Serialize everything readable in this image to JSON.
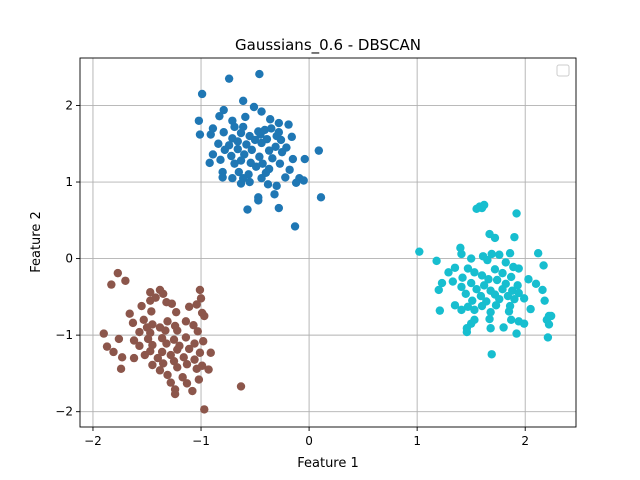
{
  "chart_data": {
    "type": "scatter",
    "title": "Gaussians_0.6 - DBSCAN",
    "xlabel": "Feature 1",
    "ylabel": "Feature 2",
    "xlim": [
      -2.12,
      2.47
    ],
    "ylim": [
      -2.2,
      2.62
    ],
    "xticks": [
      -2,
      -1,
      0,
      1,
      2
    ],
    "yticks": [
      -2,
      -1,
      0,
      1,
      2
    ],
    "xtick_labels": [
      "−2",
      "−1",
      "0",
      "1",
      "2"
    ],
    "ytick_labels": [
      "−2",
      "−1",
      "0",
      "1",
      "2"
    ],
    "grid": true,
    "legend": {
      "placement": "top-right",
      "entries": []
    },
    "series": [
      {
        "color": "#1f77b4",
        "points": [
          [
            -0.46,
            2.41
          ],
          [
            -0.74,
            2.35
          ],
          [
            -0.99,
            2.15
          ],
          [
            -0.61,
            2.06
          ],
          [
            -0.79,
            1.94
          ],
          [
            -0.51,
            1.98
          ],
          [
            -0.44,
            1.92
          ],
          [
            -0.59,
            1.85
          ],
          [
            -0.83,
            1.86
          ],
          [
            -1.02,
            1.8
          ],
          [
            -0.71,
            1.8
          ],
          [
            -0.36,
            1.82
          ],
          [
            -0.28,
            1.77
          ],
          [
            -0.19,
            1.75
          ],
          [
            -0.89,
            1.7
          ],
          [
            -0.69,
            1.72
          ],
          [
            -0.61,
            1.72
          ],
          [
            -0.47,
            1.66
          ],
          [
            -0.41,
            1.68
          ],
          [
            -0.35,
            1.7
          ],
          [
            -0.28,
            1.65
          ],
          [
            -1.01,
            1.62
          ],
          [
            -0.91,
            1.62
          ],
          [
            -0.79,
            1.65
          ],
          [
            -0.63,
            1.64
          ],
          [
            -0.55,
            1.6
          ],
          [
            -0.45,
            1.62
          ],
          [
            -0.3,
            1.6
          ],
          [
            -0.16,
            1.59
          ],
          [
            -0.71,
            1.57
          ],
          [
            -0.66,
            1.53
          ],
          [
            -0.5,
            1.55
          ],
          [
            -0.39,
            1.56
          ],
          [
            -0.26,
            1.55
          ],
          [
            -0.84,
            1.5
          ],
          [
            -0.74,
            1.48
          ],
          [
            -0.58,
            1.49
          ],
          [
            -0.44,
            1.51
          ],
          [
            -0.31,
            1.46
          ],
          [
            -0.21,
            1.45
          ],
          [
            -0.78,
            1.42
          ],
          [
            -0.66,
            1.43
          ],
          [
            -0.53,
            1.42
          ],
          [
            -0.37,
            1.41
          ],
          [
            -0.25,
            1.39
          ],
          [
            0.09,
            1.41
          ],
          [
            -0.89,
            1.36
          ],
          [
            -0.72,
            1.34
          ],
          [
            -0.6,
            1.36
          ],
          [
            -0.46,
            1.33
          ],
          [
            -0.34,
            1.31
          ],
          [
            -0.15,
            1.3
          ],
          [
            -0.82,
            1.29
          ],
          [
            -0.63,
            1.28
          ],
          [
            -0.54,
            1.25
          ],
          [
            -0.43,
            1.24
          ],
          [
            -0.27,
            1.24
          ],
          [
            -0.04,
            1.3
          ],
          [
            -0.92,
            1.25
          ],
          [
            -0.69,
            1.24
          ],
          [
            -0.49,
            1.2
          ],
          [
            -0.37,
            1.17
          ],
          [
            -0.18,
            1.16
          ],
          [
            -0.8,
            1.13
          ],
          [
            -0.65,
            1.13
          ],
          [
            -0.56,
            1.1
          ],
          [
            -0.4,
            1.12
          ],
          [
            -0.71,
            1.05
          ],
          [
            -0.61,
            1.05
          ],
          [
            -0.44,
            1.05
          ],
          [
            -0.22,
            1.06
          ],
          [
            -0.09,
            1.05
          ],
          [
            -0.8,
            1.06
          ],
          [
            -0.55,
            1.0
          ],
          [
            -0.38,
            0.97
          ],
          [
            -0.12,
            0.99
          ],
          [
            -0.05,
            1.02
          ],
          [
            -0.63,
            0.98
          ],
          [
            -0.3,
            0.95
          ],
          [
            0.11,
            0.8
          ],
          [
            -0.47,
            0.8
          ],
          [
            -0.32,
            0.84
          ],
          [
            -0.47,
            0.76
          ],
          [
            -0.28,
            0.66
          ],
          [
            -0.57,
            0.64
          ],
          [
            -0.13,
            0.42
          ]
        ]
      },
      {
        "color": "#17becf",
        "points": [
          [
            1.58,
            0.68
          ],
          [
            1.6,
            0.66
          ],
          [
            1.55,
            0.65
          ],
          [
            1.62,
            0.7
          ],
          [
            1.92,
            0.59
          ],
          [
            1.67,
            0.32
          ],
          [
            1.72,
            0.27
          ],
          [
            1.9,
            0.28
          ],
          [
            1.4,
            0.14
          ],
          [
            1.41,
            0.06
          ],
          [
            1.02,
            0.09
          ],
          [
            1.61,
            0.03
          ],
          [
            1.69,
            0.06
          ],
          [
            1.76,
            0.05
          ],
          [
            1.86,
            0.07
          ],
          [
            2.12,
            0.07
          ],
          [
            1.18,
            -0.03
          ],
          [
            1.5,
            0.0
          ],
          [
            1.65,
            -0.02
          ],
          [
            1.82,
            -0.05
          ],
          [
            1.35,
            -0.12
          ],
          [
            1.47,
            -0.13
          ],
          [
            1.72,
            -0.14
          ],
          [
            1.89,
            -0.11
          ],
          [
            1.94,
            -0.13
          ],
          [
            2.17,
            -0.09
          ],
          [
            1.29,
            -0.18
          ],
          [
            1.53,
            -0.18
          ],
          [
            1.6,
            -0.22
          ],
          [
            1.79,
            -0.19
          ],
          [
            1.87,
            -0.24
          ],
          [
            1.42,
            -0.25
          ],
          [
            1.66,
            -0.27
          ],
          [
            1.74,
            -0.28
          ],
          [
            2.03,
            -0.27
          ],
          [
            1.23,
            -0.32
          ],
          [
            1.33,
            -0.3
          ],
          [
            1.5,
            -0.32
          ],
          [
            1.62,
            -0.35
          ],
          [
            1.82,
            -0.33
          ],
          [
            1.93,
            -0.35
          ],
          [
            1.2,
            -0.41
          ],
          [
            1.41,
            -0.37
          ],
          [
            1.55,
            -0.4
          ],
          [
            1.68,
            -0.42
          ],
          [
            1.79,
            -0.4
          ],
          [
            1.88,
            -0.42
          ],
          [
            2.1,
            -0.33
          ],
          [
            2.16,
            -0.41
          ],
          [
            1.45,
            -0.46
          ],
          [
            1.59,
            -0.49
          ],
          [
            1.72,
            -0.47
          ],
          [
            1.84,
            -0.49
          ],
          [
            1.94,
            -0.45
          ],
          [
            1.51,
            -0.55
          ],
          [
            1.64,
            -0.56
          ],
          [
            1.76,
            -0.53
          ],
          [
            1.9,
            -0.53
          ],
          [
            1.99,
            -0.52
          ],
          [
            2.18,
            -0.55
          ],
          [
            1.35,
            -0.61
          ],
          [
            1.47,
            -0.63
          ],
          [
            1.6,
            -0.62
          ],
          [
            1.73,
            -0.61
          ],
          [
            1.86,
            -0.62
          ],
          [
            1.21,
            -0.68
          ],
          [
            1.41,
            -0.67
          ],
          [
            1.53,
            -0.67
          ],
          [
            1.68,
            -0.7
          ],
          [
            1.85,
            -0.69
          ],
          [
            2.05,
            -0.66
          ],
          [
            2.22,
            -0.75
          ],
          [
            2.2,
            -0.8
          ],
          [
            2.24,
            -0.75
          ],
          [
            1.87,
            -0.8
          ],
          [
            1.94,
            -0.82
          ],
          [
            1.67,
            -0.79
          ],
          [
            1.5,
            -0.85
          ],
          [
            1.53,
            -0.8
          ],
          [
            1.99,
            -0.85
          ],
          [
            1.46,
            -0.91
          ],
          [
            1.68,
            -0.91
          ],
          [
            1.8,
            -0.9
          ],
          [
            2.22,
            -0.86
          ],
          [
            1.46,
            -0.96
          ],
          [
            1.92,
            -0.98
          ],
          [
            2.21,
            -1.03
          ],
          [
            1.69,
            -1.25
          ]
        ]
      },
      {
        "color": "#8c564b",
        "points": [
          [
            -1.77,
            -0.19
          ],
          [
            -1.7,
            -0.29
          ],
          [
            -1.83,
            -0.34
          ],
          [
            -1.38,
            -0.41
          ],
          [
            -1.47,
            -0.44
          ],
          [
            -1.35,
            -0.46
          ],
          [
            -1.01,
            -0.41
          ],
          [
            -1.42,
            -0.51
          ],
          [
            -1.47,
            -0.55
          ],
          [
            -1.0,
            -0.52
          ],
          [
            -1.32,
            -0.57
          ],
          [
            -1.27,
            -0.59
          ],
          [
            -1.55,
            -0.62
          ],
          [
            -1.11,
            -0.63
          ],
          [
            -1.04,
            -0.6
          ],
          [
            -1.66,
            -0.72
          ],
          [
            -1.46,
            -0.69
          ],
          [
            -1.23,
            -0.7
          ],
          [
            -0.99,
            -0.71
          ],
          [
            -0.97,
            -0.75
          ],
          [
            -1.53,
            -0.8
          ],
          [
            -1.63,
            -0.84
          ],
          [
            -1.45,
            -0.86
          ],
          [
            -1.31,
            -0.82
          ],
          [
            -1.14,
            -0.82
          ],
          [
            -1.5,
            -0.9
          ],
          [
            -1.38,
            -0.9
          ],
          [
            -1.24,
            -0.88
          ],
          [
            -1.07,
            -0.87
          ],
          [
            -1.9,
            -0.98
          ],
          [
            -1.57,
            -0.96
          ],
          [
            -1.47,
            -0.97
          ],
          [
            -1.33,
            -0.94
          ],
          [
            -1.22,
            -0.94
          ],
          [
            -1.03,
            -0.95
          ],
          [
            -1.76,
            -1.05
          ],
          [
            -1.62,
            -1.07
          ],
          [
            -1.49,
            -1.05
          ],
          [
            -1.36,
            -1.04
          ],
          [
            -1.25,
            -1.06
          ],
          [
            -1.14,
            -1.03
          ],
          [
            -1.87,
            -1.15
          ],
          [
            -1.57,
            -1.14
          ],
          [
            -1.45,
            -1.13
          ],
          [
            -1.32,
            -1.11
          ],
          [
            -1.2,
            -1.14
          ],
          [
            -1.06,
            -1.11
          ],
          [
            -0.98,
            -1.08
          ],
          [
            -1.81,
            -1.22
          ],
          [
            -1.47,
            -1.21
          ],
          [
            -1.36,
            -1.22
          ],
          [
            -1.22,
            -1.19
          ],
          [
            -1.11,
            -1.18
          ],
          [
            -1.01,
            -1.23
          ],
          [
            -0.91,
            -1.23
          ],
          [
            -1.73,
            -1.29
          ],
          [
            -1.52,
            -1.26
          ],
          [
            -1.4,
            -1.3
          ],
          [
            -1.28,
            -1.26
          ],
          [
            -1.16,
            -1.29
          ],
          [
            -1.35,
            -1.37
          ],
          [
            -1.25,
            -1.34
          ],
          [
            -1.06,
            -1.32
          ],
          [
            -1.62,
            -1.3
          ],
          [
            -1.45,
            -1.39
          ],
          [
            -1.13,
            -1.38
          ],
          [
            -0.99,
            -1.4
          ],
          [
            -1.74,
            -1.44
          ],
          [
            -1.38,
            -1.46
          ],
          [
            -1.22,
            -1.42
          ],
          [
            -1.04,
            -1.44
          ],
          [
            -0.93,
            -1.45
          ],
          [
            -1.31,
            -1.52
          ],
          [
            -1.17,
            -1.55
          ],
          [
            -1.02,
            -1.58
          ],
          [
            -1.28,
            -1.62
          ],
          [
            -1.13,
            -1.63
          ],
          [
            -1.24,
            -1.71
          ],
          [
            -0.63,
            -1.67
          ],
          [
            -1.08,
            -1.73
          ],
          [
            -1.24,
            -1.77
          ],
          [
            -0.97,
            -1.97
          ]
        ]
      }
    ]
  }
}
